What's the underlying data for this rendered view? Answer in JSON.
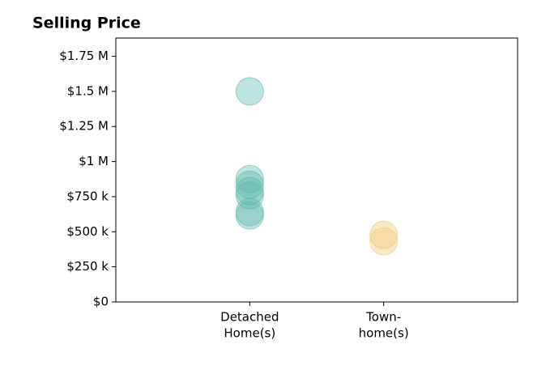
{
  "chart_data": {
    "type": "strip",
    "title": "Selling Price",
    "categories": [
      [
        "Detached",
        "Home(s)"
      ],
      [
        "Town-",
        "home(s)"
      ]
    ],
    "values": [
      [
        1500000,
        875000,
        835000,
        790000,
        760000,
        640000,
        616000
      ],
      [
        478000,
        432000
      ]
    ],
    "colors": [
      "#5fb8ad",
      "#f0c870"
    ],
    "ylim": [
      0,
      1880000
    ],
    "yticks": [
      {
        "value": 0,
        "label": "$0"
      },
      {
        "value": 250000,
        "label": "$250 k"
      },
      {
        "value": 500000,
        "label": "$500 k"
      },
      {
        "value": 750000,
        "label": "$750 k"
      },
      {
        "value": 1000000,
        "label": "$1 M"
      },
      {
        "value": 1250000,
        "label": "$1.25 M"
      },
      {
        "value": 1500000,
        "label": "$1.5 M"
      },
      {
        "value": 1750000,
        "label": "$1.75 M"
      }
    ]
  }
}
